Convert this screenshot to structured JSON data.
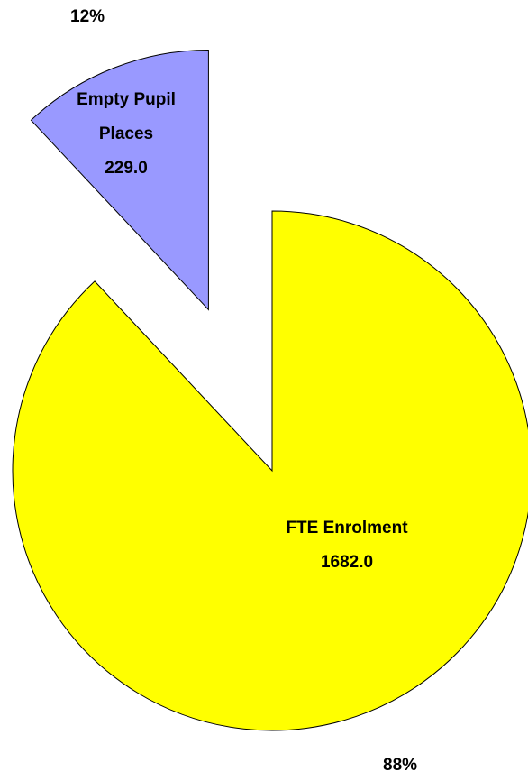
{
  "chart_data": {
    "type": "pie",
    "categories": [
      "FTE Enrolment",
      "Empty Pupil Places"
    ],
    "values": [
      1682.0,
      229.0
    ],
    "value_labels": [
      "1682.0",
      "229.0"
    ],
    "percent_labels": [
      "88%",
      "12%"
    ],
    "colors": [
      "#ffff00",
      "#9999ff"
    ],
    "exploded": [
      false,
      true
    ]
  }
}
